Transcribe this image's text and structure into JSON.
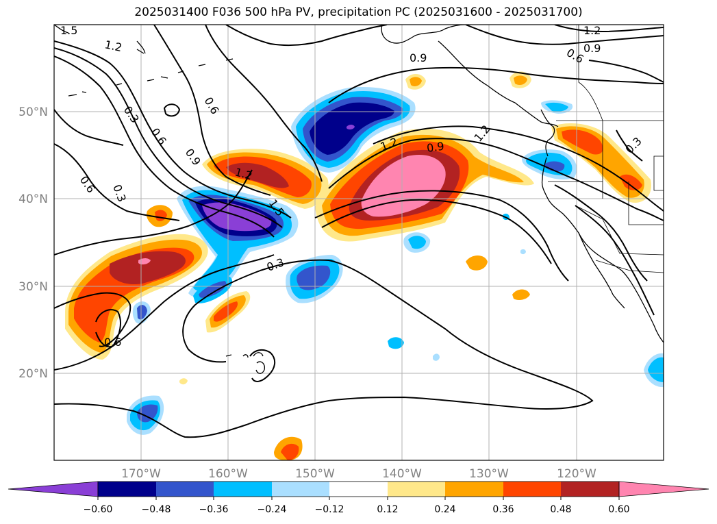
{
  "title": "2025031400 F036 500 hPa PV, precipitation PC (2025031600 - 2025031700)",
  "colors": {
    "grid": "#b0b0b0",
    "coast": "#000000",
    "contour": "#000000",
    "tick_label": "#808080",
    "fill": {
      "purple": "#8a3fd6",
      "navy": "#00008b",
      "royal": "#3355cc",
      "deepsky": "#00bfff",
      "lightblue": "#aadfff",
      "white": "#ffffff",
      "lightyellow": "#ffe88a",
      "orange": "#ffa500",
      "redorange": "#ff4500",
      "firebrick": "#b22222",
      "pink": "#ff85b0"
    }
  },
  "axes": {
    "lon_labels": [
      "170°W",
      "160°W",
      "150°W",
      "140°W",
      "130°W",
      "120°W"
    ],
    "lat_labels": [
      "50°N",
      "40°N",
      "30°N",
      "20°N"
    ]
  },
  "colorbar": {
    "extend": "both",
    "colors": [
      "#8a3fd6",
      "#00008b",
      "#3355cc",
      "#00bfff",
      "#aadfff",
      "#ffffff",
      "#ffe88a",
      "#ffa500",
      "#ff4500",
      "#b22222",
      "#ff85b0"
    ],
    "tick_labels": [
      "−0.60",
      "−0.48",
      "−0.36",
      "−0.24",
      "−0.12",
      "0.12",
      "0.24",
      "0.36",
      "0.48",
      "0.60"
    ]
  },
  "contour_labels": [
    "1.5",
    "1.2",
    "0.9",
    "0.6",
    "0.3",
    "0.6",
    "0.9",
    "1.2",
    "1.5",
    "0.3",
    "0.6",
    "0.6",
    "0.3",
    "1.2",
    "0.9",
    "1.2",
    "0.6",
    "0.9",
    "1.2",
    "0.3"
  ]
}
